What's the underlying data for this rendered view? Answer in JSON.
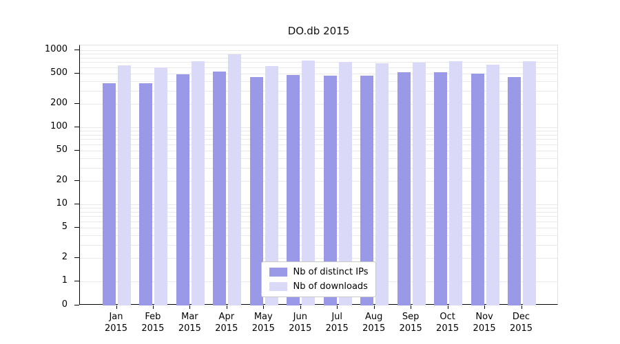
{
  "chart_data": {
    "type": "bar",
    "title": "DO.db 2015",
    "y_scale": "symlog",
    "ylim": [
      0,
      1150
    ],
    "grid": true,
    "y_ticks": [
      "0",
      "1",
      "2",
      "5",
      "10",
      "20",
      "50",
      "100",
      "200",
      "500",
      "1000"
    ],
    "categories": [
      "Jan 2015",
      "Feb 2015",
      "Mar 2015",
      "Apr 2015",
      "May 2015",
      "Jun 2015",
      "Jul 2015",
      "Aug 2015",
      "Sep 2015",
      "Oct 2015",
      "Nov 2015",
      "Dec 2015"
    ],
    "series": [
      {
        "name": "Nb of distinct IPs",
        "color": "#9999e8",
        "values": [
          370,
          370,
          490,
          530,
          450,
          480,
          470,
          470,
          520,
          520,
          500,
          450
        ]
      },
      {
        "name": "Nb of downloads",
        "color": "#dadaf8",
        "values": [
          640,
          600,
          720,
          880,
          620,
          740,
          710,
          680,
          690,
          720,
          650,
          720
        ]
      }
    ],
    "legend": {
      "position": "lower center",
      "entries": [
        "Nb of distinct IPs",
        "Nb of downloads"
      ]
    }
  }
}
